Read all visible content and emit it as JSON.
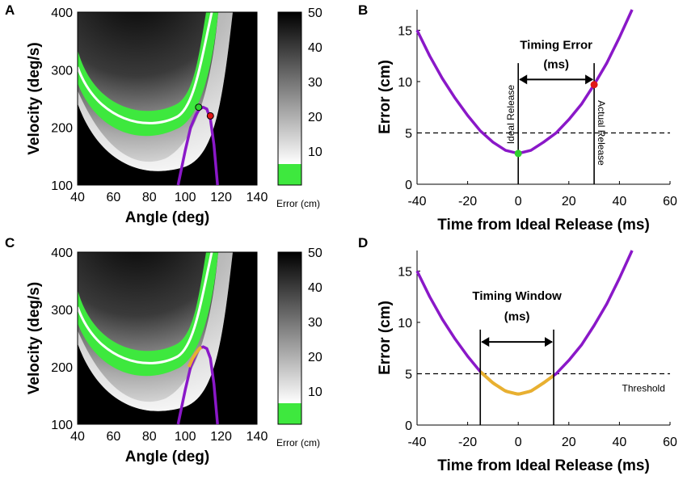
{
  "panels": {
    "a": "A",
    "b": "B",
    "c": "C",
    "d": "D"
  },
  "colorbar": {
    "ticks": [
      "50",
      "40",
      "30",
      "20",
      "10"
    ],
    "label": "Error (cm)",
    "threshold_color": "#3ee83e"
  },
  "colors": {
    "trajectory": "#8a18c8",
    "window": "#e8b030",
    "threshold_band": "#3ee83e",
    "release_ideal": "#30d030",
    "release_actual": "#e01818"
  },
  "chart_data": [
    {
      "id": "A",
      "type": "heatmap",
      "xlabel": "Angle (deg)",
      "ylabel": "Velocity (deg/s)",
      "xlim": [
        40,
        140
      ],
      "ylim": [
        100,
        400
      ],
      "x_ticks": [
        "40",
        "60",
        "80",
        "100",
        "120",
        "140"
      ],
      "y_ticks": [
        "100",
        "200",
        "300",
        "400"
      ],
      "color_range": [
        0,
        50
      ],
      "threshold_cm": 5,
      "trajectory": {
        "x": [
          96,
          100,
          103,
          106,
          108,
          110,
          112,
          114,
          116,
          118
        ],
        "y": [
          100,
          160,
          200,
          222,
          232,
          235,
          232,
          215,
          170,
          100
        ]
      },
      "markers": [
        {
          "name": "ideal release",
          "x": 107.5,
          "y": 235
        },
        {
          "name": "actual release",
          "x": 114,
          "y": 220
        }
      ]
    },
    {
      "id": "B",
      "type": "line",
      "xlabel": "Time from Ideal Release (ms)",
      "ylabel": "Error (cm)",
      "xlim": [
        -40,
        60
      ],
      "ylim": [
        0,
        17
      ],
      "x_ticks": [
        "-40",
        "-20",
        "0",
        "20",
        "40",
        "60"
      ],
      "y_ticks": [
        "0",
        "5",
        "10",
        "15"
      ],
      "series": [
        {
          "name": "error",
          "x": [
            -40,
            -35,
            -30,
            -25,
            -20,
            -15,
            -10,
            -5,
            0,
            5,
            10,
            15,
            20,
            25,
            30,
            35,
            40,
            45
          ],
          "y": [
            15,
            12.5,
            10.3,
            8.4,
            6.7,
            5.2,
            4.1,
            3.3,
            3.0,
            3.3,
            4.1,
            5.0,
            6.3,
            7.8,
            9.7,
            11.8,
            14.3,
            17
          ]
        }
      ],
      "threshold": 5,
      "vlines": [
        {
          "x": 0,
          "label": "Ideal Release"
        },
        {
          "x": 30,
          "label": "Actual Release"
        }
      ],
      "points": [
        {
          "x": 0,
          "y": 3.0
        },
        {
          "x": 30,
          "y": 9.7
        }
      ],
      "annotation": {
        "title": "Timing Error",
        "unit": "(ms)"
      }
    },
    {
      "id": "C",
      "type": "heatmap",
      "xlabel": "Angle (deg)",
      "ylabel": "Velocity (deg/s)",
      "xlim": [
        40,
        140
      ],
      "ylim": [
        100,
        400
      ],
      "x_ticks": [
        "40",
        "60",
        "80",
        "100",
        "120",
        "140"
      ],
      "y_ticks": [
        "100",
        "200",
        "300",
        "400"
      ],
      "color_range": [
        0,
        50
      ],
      "threshold_cm": 5,
      "trajectory": {
        "x": [
          96,
          100,
          103,
          106,
          108,
          110,
          112,
          114,
          116,
          118
        ],
        "y": [
          100,
          160,
          200,
          222,
          232,
          235,
          232,
          215,
          170,
          100
        ]
      },
      "window_segment": {
        "x": [
          102,
          104,
          106,
          108,
          109
        ],
        "y": [
          200,
          214,
          224,
          232,
          234
        ]
      }
    },
    {
      "id": "D",
      "type": "line",
      "xlabel": "Time from Ideal Release (ms)",
      "ylabel": "Error (cm)",
      "xlim": [
        -40,
        60
      ],
      "ylim": [
        0,
        17
      ],
      "x_ticks": [
        "-40",
        "-20",
        "0",
        "20",
        "40",
        "60"
      ],
      "y_ticks": [
        "0",
        "5",
        "10",
        "15"
      ],
      "series": [
        {
          "name": "error",
          "x": [
            -40,
            -35,
            -30,
            -25,
            -20,
            -15,
            -10,
            -5,
            0,
            5,
            10,
            15,
            20,
            25,
            30,
            35,
            40,
            45
          ],
          "y": [
            15,
            12.5,
            10.3,
            8.4,
            6.7,
            5.2,
            4.1,
            3.3,
            3.0,
            3.3,
            4.1,
            5.0,
            6.3,
            7.8,
            9.7,
            11.8,
            14.3,
            17
          ]
        }
      ],
      "threshold": 5,
      "threshold_label": "Threshold",
      "window": [
        -15,
        14
      ],
      "annotation": {
        "title": "Timing Window",
        "unit": "(ms)"
      }
    }
  ]
}
